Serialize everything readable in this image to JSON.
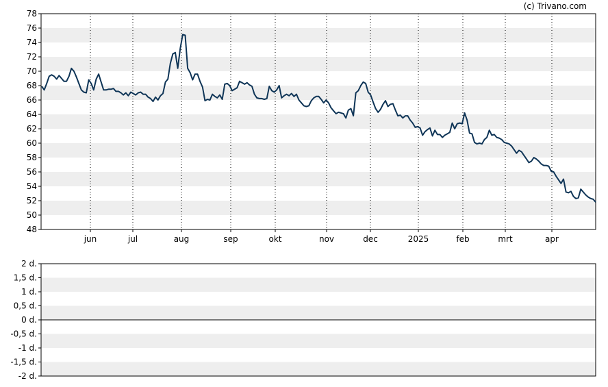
{
  "credit": "(c) Trivano.com",
  "colors": {
    "line": "#0f3557",
    "band": "#eeeeee",
    "grid": "#000000",
    "axis": "#000000",
    "zero_line": "#000000"
  },
  "chart_data": [
    {
      "type": "line",
      "ylim": [
        48,
        78
      ],
      "yticks": [
        "78",
        "76",
        "74",
        "72",
        "70",
        "68",
        "66",
        "64",
        "62",
        "60",
        "58",
        "56",
        "54",
        "52",
        "50",
        "48"
      ],
      "xticks": [
        "jun",
        "jul",
        "aug",
        "sep",
        "okt",
        "nov",
        "dec",
        "2025",
        "feb",
        "mrt",
        "apr"
      ],
      "grid": "vertical dotted at month ticks, alternating horizontal bands",
      "series": [
        {
          "values": [
            67.9,
            67.4,
            68.3,
            69.3,
            69.5,
            69.3,
            68.9,
            69.4,
            69.0,
            68.6,
            68.6,
            69.3,
            70.4,
            70.0,
            69.2,
            68.3,
            67.4,
            67.1,
            67.0,
            68.8,
            68.3,
            67.4,
            68.9,
            69.6,
            68.5,
            67.4,
            67.4,
            67.5,
            67.5,
            67.6,
            67.2,
            67.2,
            67.0,
            66.7,
            67.0,
            66.6,
            67.1,
            66.9,
            66.7,
            67.0,
            67.1,
            66.8,
            66.8,
            66.4,
            66.2,
            65.8,
            66.4,
            66.0,
            66.6,
            66.9,
            68.5,
            68.9,
            71.1,
            72.4,
            72.6,
            70.4,
            73.2,
            75.1,
            75.0,
            70.4,
            69.8,
            68.8,
            69.6,
            69.6,
            68.6,
            67.8,
            65.9,
            66.1,
            66.0,
            66.8,
            66.5,
            66.3,
            66.7,
            66.1,
            68.2,
            68.3,
            68.0,
            67.3,
            67.5,
            67.7,
            68.6,
            68.4,
            68.2,
            68.4,
            68.1,
            67.9,
            66.8,
            66.3,
            66.2,
            66.2,
            66.1,
            66.2,
            67.9,
            67.3,
            67.1,
            67.4,
            68.0,
            66.3,
            66.6,
            66.8,
            66.6,
            66.9,
            66.5,
            66.8,
            66.0,
            65.6,
            65.2,
            65.1,
            65.2,
            65.9,
            66.3,
            66.5,
            66.5,
            66.1,
            65.6,
            66.0,
            65.6,
            64.9,
            64.5,
            64.1,
            64.3,
            64.2,
            64.1,
            63.5,
            64.6,
            64.8,
            63.8,
            67.0,
            67.3,
            68.0,
            68.5,
            68.3,
            67.1,
            66.7,
            65.7,
            64.8,
            64.3,
            64.7,
            65.4,
            65.9,
            65.1,
            65.4,
            65.5,
            64.6,
            63.8,
            63.9,
            63.5,
            63.8,
            63.8,
            63.2,
            62.8,
            62.2,
            62.3,
            62.1,
            61.1,
            61.6,
            61.9,
            62.1,
            61.0,
            61.8,
            61.2,
            61.2,
            60.8,
            61.1,
            61.3,
            61.5,
            62.8,
            62.0,
            62.7,
            62.8,
            62.7,
            64.2,
            63.2,
            61.4,
            61.3,
            60.1,
            59.9,
            60.0,
            59.9,
            60.5,
            60.8,
            61.8,
            61.1,
            61.2,
            60.8,
            60.7,
            60.5,
            60.1,
            60.0,
            59.9,
            59.6,
            59.1,
            58.6,
            59.0,
            58.8,
            58.3,
            57.8,
            57.3,
            57.5,
            58.0,
            57.8,
            57.5,
            57.1,
            56.9,
            56.9,
            56.8,
            56.1,
            56.0,
            55.4,
            54.9,
            54.4,
            55.0,
            53.2,
            53.1,
            53.3,
            52.6,
            52.3,
            52.4,
            53.6,
            53.2,
            52.8,
            52.5,
            52.3,
            52.2,
            51.8
          ]
        }
      ]
    },
    {
      "type": "line",
      "ylim": [
        -2,
        2
      ],
      "yticks": [
        "2 d.",
        "1,5 d.",
        "1 d.",
        "0,5 d.",
        "0 d.",
        "-0,5 d.",
        "-1 d.",
        "-1,5 d.",
        "-2 d."
      ],
      "grid": "alternating horizontal bands, zero line",
      "series": []
    }
  ]
}
